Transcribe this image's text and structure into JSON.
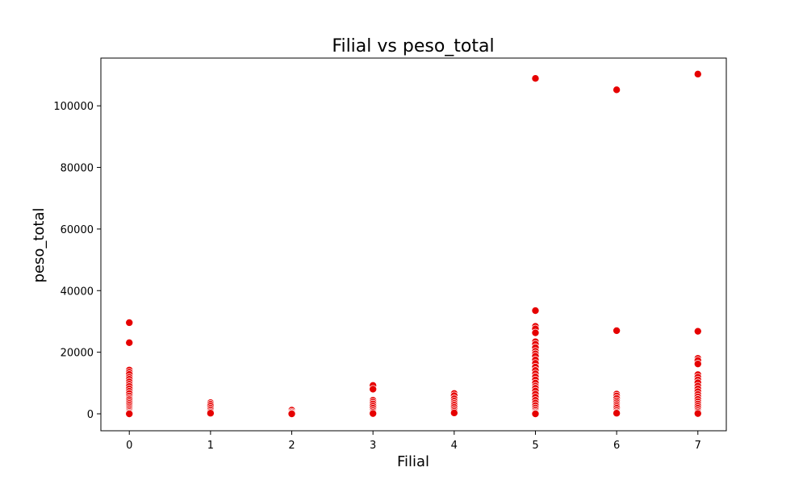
{
  "chart_data": {
    "type": "scatter",
    "title": "Filial vs peso_total",
    "xlabel": "Filial",
    "ylabel": "peso_total",
    "xlim": [
      -0.35,
      7.35
    ],
    "ylim": [
      -5500,
      115500
    ],
    "xticks": [
      0,
      1,
      2,
      3,
      4,
      5,
      6,
      7
    ],
    "yticks": [
      0,
      20000,
      40000,
      60000,
      80000,
      100000
    ],
    "grid": false,
    "legend": "none",
    "marker_color": "#e60000",
    "marker_edge_color": "#ffffff",
    "series": [
      {
        "points": [
          [
            0,
            29600
          ],
          [
            0,
            23100
          ],
          [
            0,
            14200
          ],
          [
            0,
            13500
          ],
          [
            0,
            12800
          ],
          [
            0,
            11900
          ],
          [
            0,
            11200
          ],
          [
            0,
            10400
          ],
          [
            0,
            9600
          ],
          [
            0,
            8900
          ],
          [
            0,
            8100
          ],
          [
            0,
            7300
          ],
          [
            0,
            6600
          ],
          [
            0,
            5800
          ],
          [
            0,
            5100
          ],
          [
            0,
            4600
          ],
          [
            0,
            4000
          ],
          [
            0,
            3400
          ],
          [
            0,
            2800
          ],
          [
            0,
            2200
          ],
          [
            0,
            1700
          ],
          [
            0,
            1200
          ],
          [
            0,
            700
          ],
          [
            0,
            300
          ],
          [
            0,
            0
          ],
          [
            1,
            3600
          ],
          [
            1,
            3100
          ],
          [
            1,
            2500
          ],
          [
            1,
            1800
          ],
          [
            1,
            1200
          ],
          [
            1,
            600
          ],
          [
            1,
            200
          ],
          [
            2,
            1200
          ],
          [
            2,
            600
          ],
          [
            2,
            200
          ],
          [
            2,
            0
          ],
          [
            3,
            9200
          ],
          [
            3,
            8000
          ],
          [
            3,
            4400
          ],
          [
            3,
            3800
          ],
          [
            3,
            3200
          ],
          [
            3,
            2500
          ],
          [
            3,
            1800
          ],
          [
            3,
            1100
          ],
          [
            3,
            500
          ],
          [
            3,
            100
          ],
          [
            4,
            6600
          ],
          [
            4,
            5900
          ],
          [
            4,
            4900
          ],
          [
            4,
            4100
          ],
          [
            4,
            3400
          ],
          [
            4,
            2800
          ],
          [
            4,
            2100
          ],
          [
            4,
            1400
          ],
          [
            4,
            800
          ],
          [
            4,
            300
          ],
          [
            5,
            108900
          ],
          [
            5,
            33500
          ],
          [
            5,
            28400
          ],
          [
            5,
            27600
          ],
          [
            5,
            26300
          ],
          [
            5,
            23400
          ],
          [
            5,
            22600
          ],
          [
            5,
            21500
          ],
          [
            5,
            20300
          ],
          [
            5,
            19500
          ],
          [
            5,
            18700
          ],
          [
            5,
            17500
          ],
          [
            5,
            16400
          ],
          [
            5,
            15200
          ],
          [
            5,
            14100
          ],
          [
            5,
            13000
          ],
          [
            5,
            12000
          ],
          [
            5,
            11000
          ],
          [
            5,
            10000
          ],
          [
            5,
            9000
          ],
          [
            5,
            8300
          ],
          [
            5,
            7400
          ],
          [
            5,
            6400
          ],
          [
            5,
            5400
          ],
          [
            5,
            4400
          ],
          [
            5,
            3500
          ],
          [
            5,
            2700
          ],
          [
            5,
            1900
          ],
          [
            5,
            1200
          ],
          [
            5,
            600
          ],
          [
            5,
            200
          ],
          [
            5,
            0
          ],
          [
            6,
            105200
          ],
          [
            6,
            27000
          ],
          [
            6,
            6400
          ],
          [
            6,
            5800
          ],
          [
            6,
            5000
          ],
          [
            6,
            4200
          ],
          [
            6,
            3600
          ],
          [
            6,
            3000
          ],
          [
            6,
            2400
          ],
          [
            6,
            1800
          ],
          [
            6,
            1100
          ],
          [
            6,
            500
          ],
          [
            6,
            200
          ],
          [
            7,
            110300
          ],
          [
            7,
            26800
          ],
          [
            7,
            18000
          ],
          [
            7,
            17300
          ],
          [
            7,
            16200
          ],
          [
            7,
            12700
          ],
          [
            7,
            11900
          ],
          [
            7,
            11000
          ],
          [
            7,
            10100
          ],
          [
            7,
            9000
          ],
          [
            7,
            8100
          ],
          [
            7,
            7200
          ],
          [
            7,
            6300
          ],
          [
            7,
            5500
          ],
          [
            7,
            4700
          ],
          [
            7,
            3900
          ],
          [
            7,
            3200
          ],
          [
            7,
            2500
          ],
          [
            7,
            1800
          ],
          [
            7,
            1100
          ],
          [
            7,
            500
          ],
          [
            7,
            100
          ]
        ]
      }
    ]
  }
}
